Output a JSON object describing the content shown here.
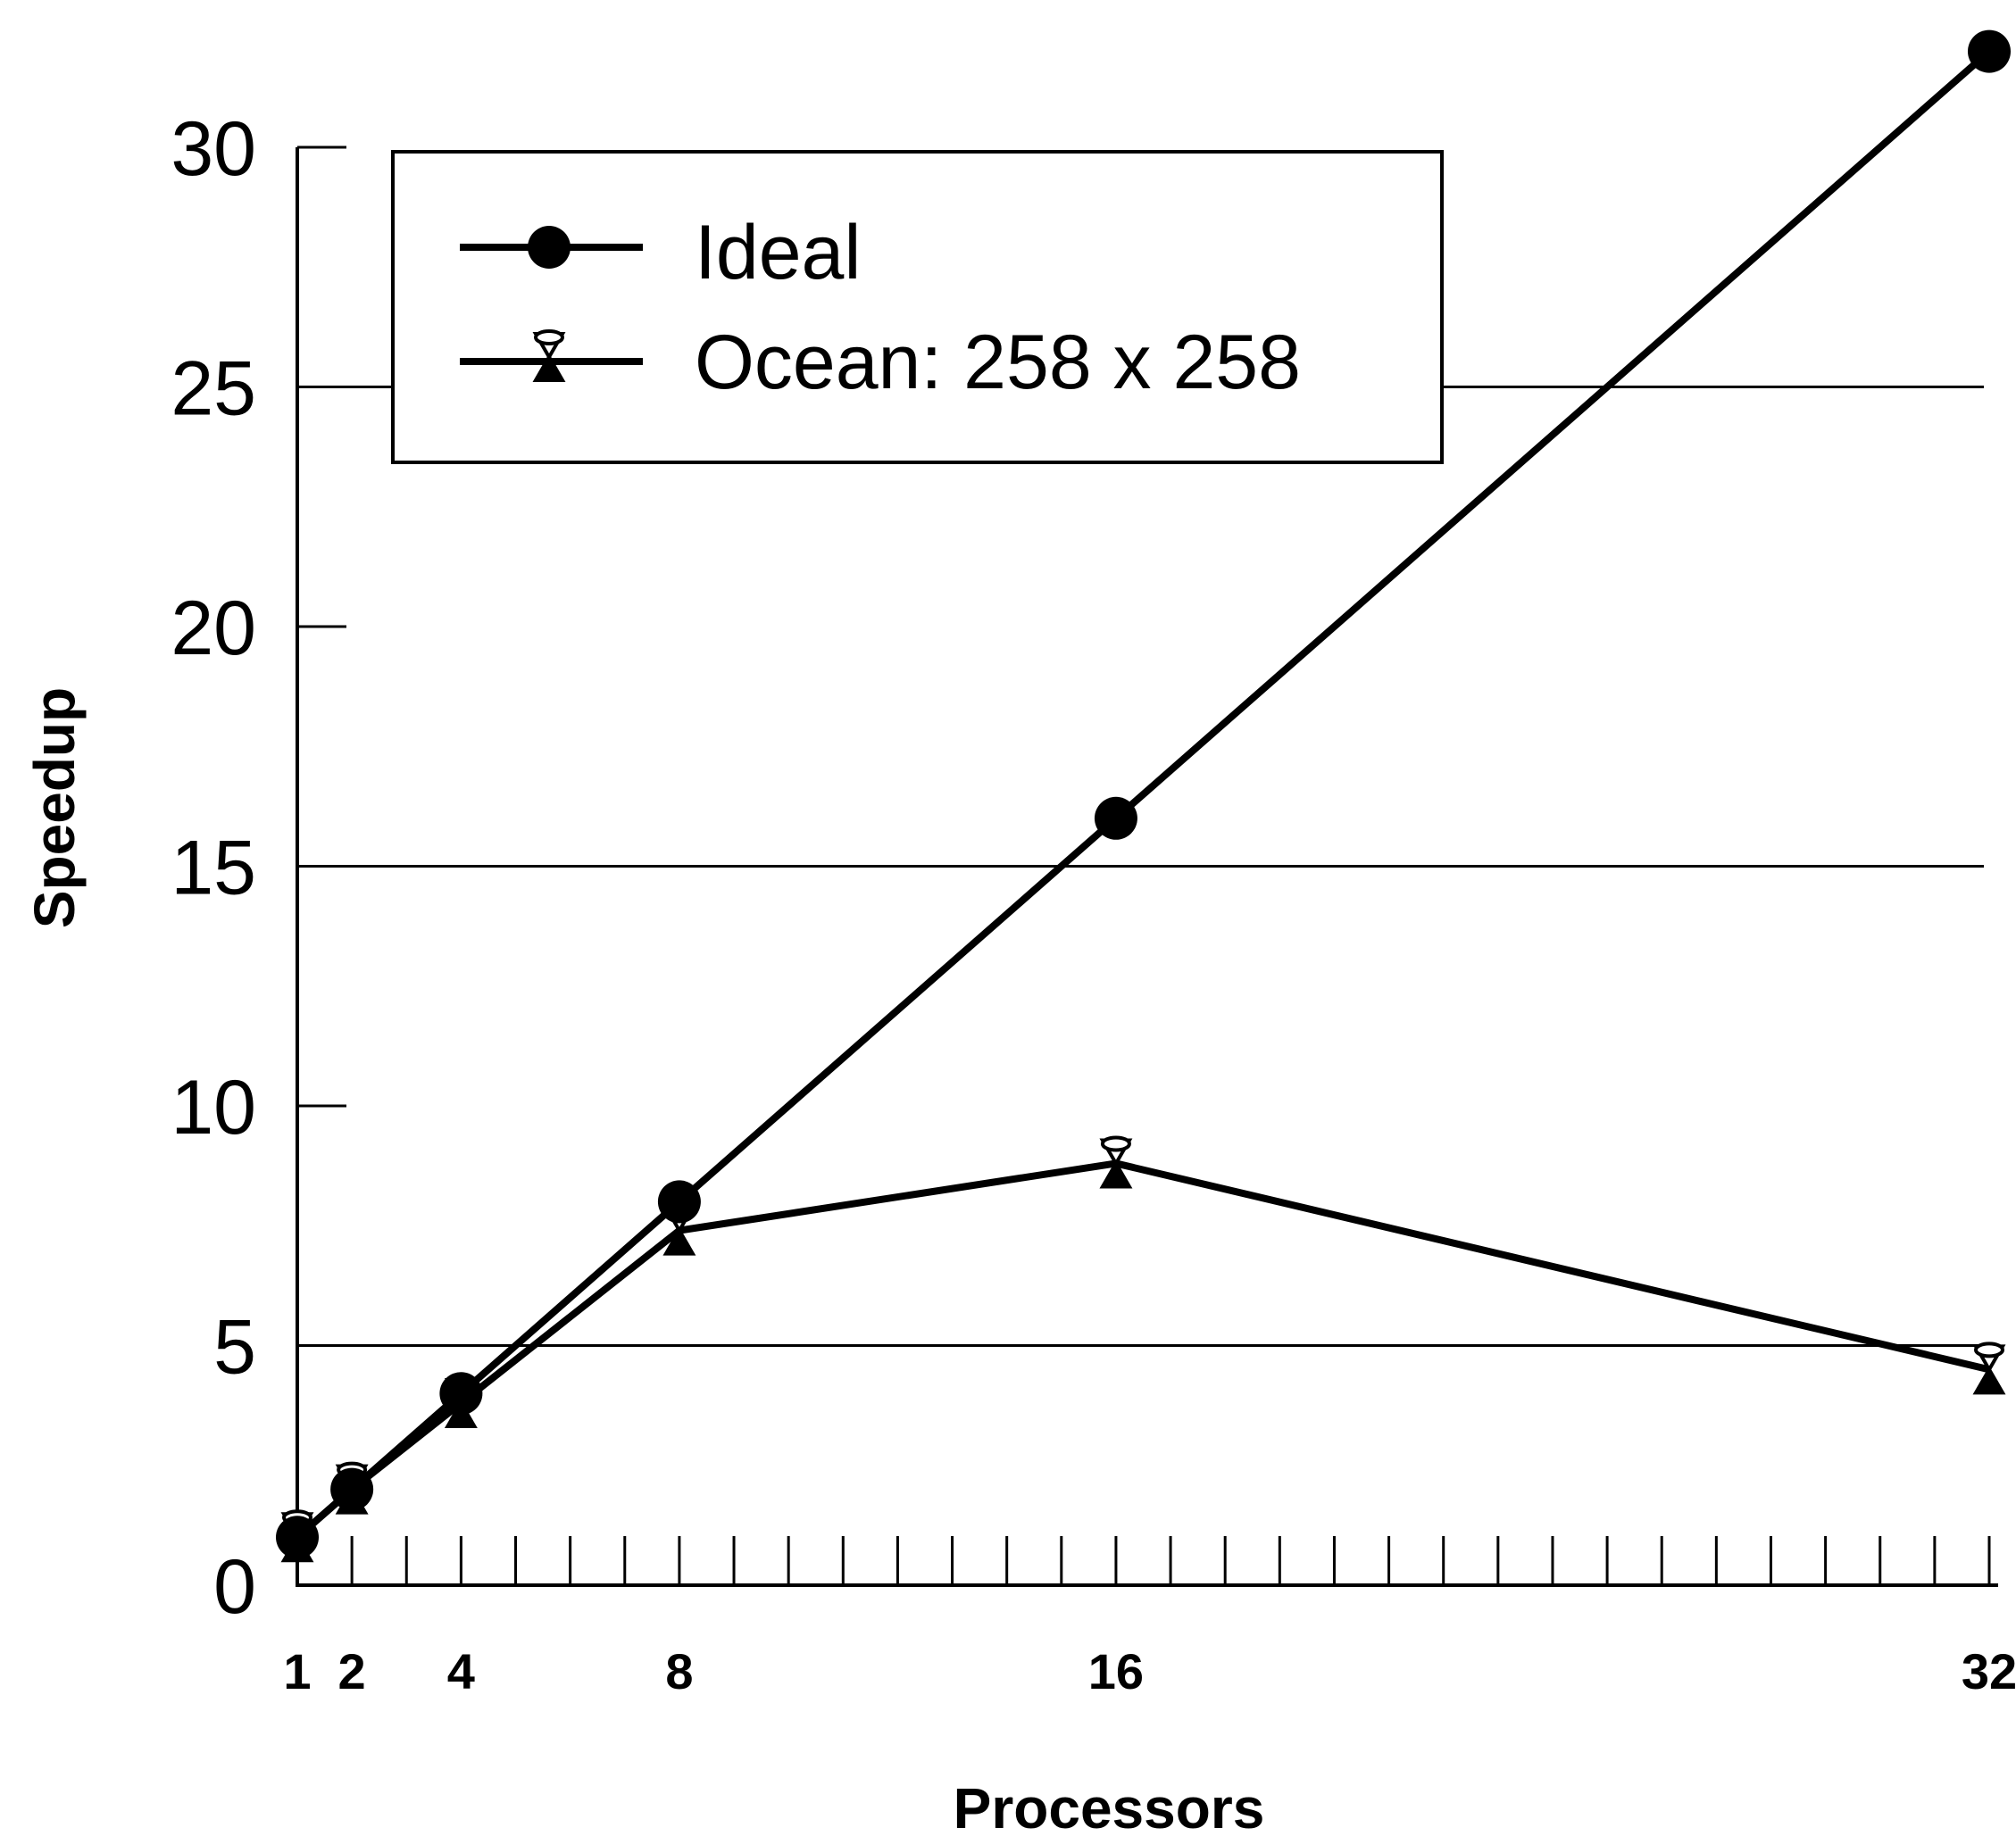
{
  "chart_data": {
    "type": "line",
    "title": "",
    "xlabel": "Processors",
    "ylabel": "Speedup",
    "xlim": [
      1,
      32
    ],
    "ylim": [
      0,
      30
    ],
    "x_ticks": [
      1,
      2,
      4,
      8,
      16,
      32
    ],
    "x_minor_ticks": [
      1,
      2,
      3,
      4,
      5,
      6,
      7,
      8,
      9,
      10,
      11,
      12,
      13,
      14,
      15,
      16,
      17,
      18,
      19,
      20,
      21,
      22,
      23,
      24,
      25,
      26,
      27,
      28,
      29,
      30,
      31,
      32
    ],
    "y_ticks": [
      0,
      5,
      10,
      15,
      20,
      25,
      30
    ],
    "gridlines_y": [
      5,
      15,
      25
    ],
    "legend_position": "top-left",
    "series": [
      {
        "name": "Ideal",
        "marker": "filled-circle",
        "x": [
          1,
          2,
          4,
          8,
          16,
          32
        ],
        "y": [
          1,
          2,
          4,
          8,
          16,
          32
        ]
      },
      {
        "name": "Ocean: 258 x 258",
        "marker": "hourglass",
        "x": [
          1,
          2,
          4,
          8,
          16,
          32
        ],
        "y": [
          1,
          2,
          3.8,
          7.4,
          8.8,
          4.5
        ]
      }
    ]
  }
}
